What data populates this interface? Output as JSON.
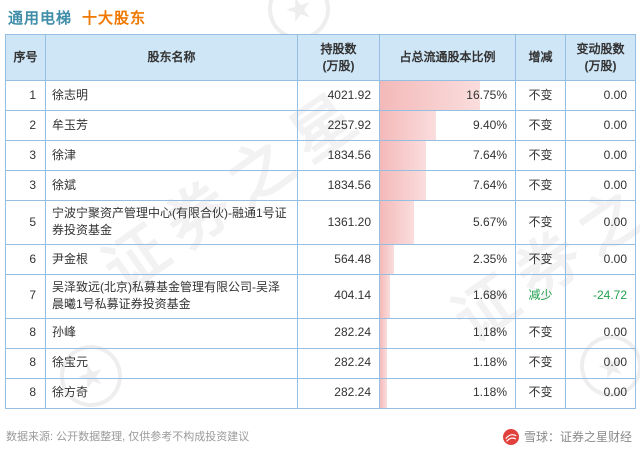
{
  "title": {
    "company": "通用电梯",
    "section": "十大股东"
  },
  "table": {
    "columns": [
      "序号",
      "股东名称",
      "持股数\n(万股)",
      "占总流通股本比例",
      "增减",
      "变动股数\n(万股)"
    ],
    "rows": [
      {
        "index": "1",
        "name": "徐志明",
        "shares": "4021.92",
        "pct": 16.75,
        "pct_text": "16.75%",
        "change": "不变",
        "change_shares": "0.00",
        "decrease": false
      },
      {
        "index": "2",
        "name": "牟玉芳",
        "shares": "2257.92",
        "pct": 9.4,
        "pct_text": "9.40%",
        "change": "不变",
        "change_shares": "0.00",
        "decrease": false
      },
      {
        "index": "3",
        "name": "徐津",
        "shares": "1834.56",
        "pct": 7.64,
        "pct_text": "7.64%",
        "change": "不变",
        "change_shares": "0.00",
        "decrease": false
      },
      {
        "index": "3",
        "name": "徐斌",
        "shares": "1834.56",
        "pct": 7.64,
        "pct_text": "7.64%",
        "change": "不变",
        "change_shares": "0.00",
        "decrease": false
      },
      {
        "index": "5",
        "name": "宁波宁聚资产管理中心(有限合伙)-融通1号证券投资基金",
        "shares": "1361.20",
        "pct": 5.67,
        "pct_text": "5.67%",
        "change": "不变",
        "change_shares": "0.00",
        "decrease": false
      },
      {
        "index": "6",
        "name": "尹金根",
        "shares": "564.48",
        "pct": 2.35,
        "pct_text": "2.35%",
        "change": "不变",
        "change_shares": "0.00",
        "decrease": false
      },
      {
        "index": "7",
        "name": "吴泽致远(北京)私募基金管理有限公司-吴泽晨曦1号私募证券投资基金",
        "shares": "404.14",
        "pct": 1.68,
        "pct_text": "1.68%",
        "change": "减少",
        "change_shares": "-24.72",
        "decrease": true
      },
      {
        "index": "8",
        "name": "孙峰",
        "shares": "282.24",
        "pct": 1.18,
        "pct_text": "1.18%",
        "change": "不变",
        "change_shares": "0.00",
        "decrease": false
      },
      {
        "index": "8",
        "name": "徐宝元",
        "shares": "282.24",
        "pct": 1.18,
        "pct_text": "1.18%",
        "change": "不变",
        "change_shares": "0.00",
        "decrease": false
      },
      {
        "index": "8",
        "name": "徐方奇",
        "shares": "282.24",
        "pct": 1.18,
        "pct_text": "1.18%",
        "change": "不变",
        "change_shares": "0.00",
        "decrease": false
      }
    ]
  },
  "chart_data": {
    "type": "bar",
    "title": "通用电梯 十大股东",
    "orientation": "horizontal",
    "categories": [
      "徐志明",
      "牟玉芳",
      "徐津",
      "徐斌",
      "宁波宁聚资产管理中心(有限合伙)-融通1号证券投资基金",
      "尹金根",
      "吴泽致远(北京)私募基金管理有限公司-吴泽晨曦1号私募证券投资基金",
      "孙峰",
      "徐宝元",
      "徐方奇"
    ],
    "values": [
      16.75,
      9.4,
      7.64,
      7.64,
      5.67,
      2.35,
      1.68,
      1.18,
      1.18,
      1.18
    ],
    "unit": "%",
    "xlim": [
      0,
      16.75
    ],
    "xlabel": "占总流通股本比例",
    "series": [
      {
        "name": "持股数(万股)",
        "values": [
          4021.92,
          2257.92,
          1834.56,
          1834.56,
          1361.2,
          564.48,
          404.14,
          282.24,
          282.24,
          282.24
        ]
      },
      {
        "name": "占总流通股本比例(%)",
        "values": [
          16.75,
          9.4,
          7.64,
          7.64,
          5.67,
          2.35,
          1.68,
          1.18,
          1.18,
          1.18
        ]
      },
      {
        "name": "变动股数(万股)",
        "values": [
          0.0,
          0.0,
          0.0,
          0.0,
          0.0,
          0.0,
          -24.72,
          0.0,
          0.0,
          0.0
        ]
      }
    ],
    "bar_color": "#f6c3c3",
    "legend_position": "none",
    "grid": false
  },
  "watermark": {
    "text": "证券之星",
    "star": "★"
  },
  "footer": {
    "source": "数据来源: 公开数据整理, 仅供参考不构成投资建议",
    "brand": "雪球：证券之星财经"
  },
  "colors": {
    "title_company": "#3f8da8",
    "title_section": "#f07800",
    "header_bg": "#cfe6f7",
    "table_border": "#94bfe2",
    "bar_fill": "#f6c3c3",
    "decrease_green": "#21a04d",
    "brand_logo_red": "#e0413c"
  }
}
